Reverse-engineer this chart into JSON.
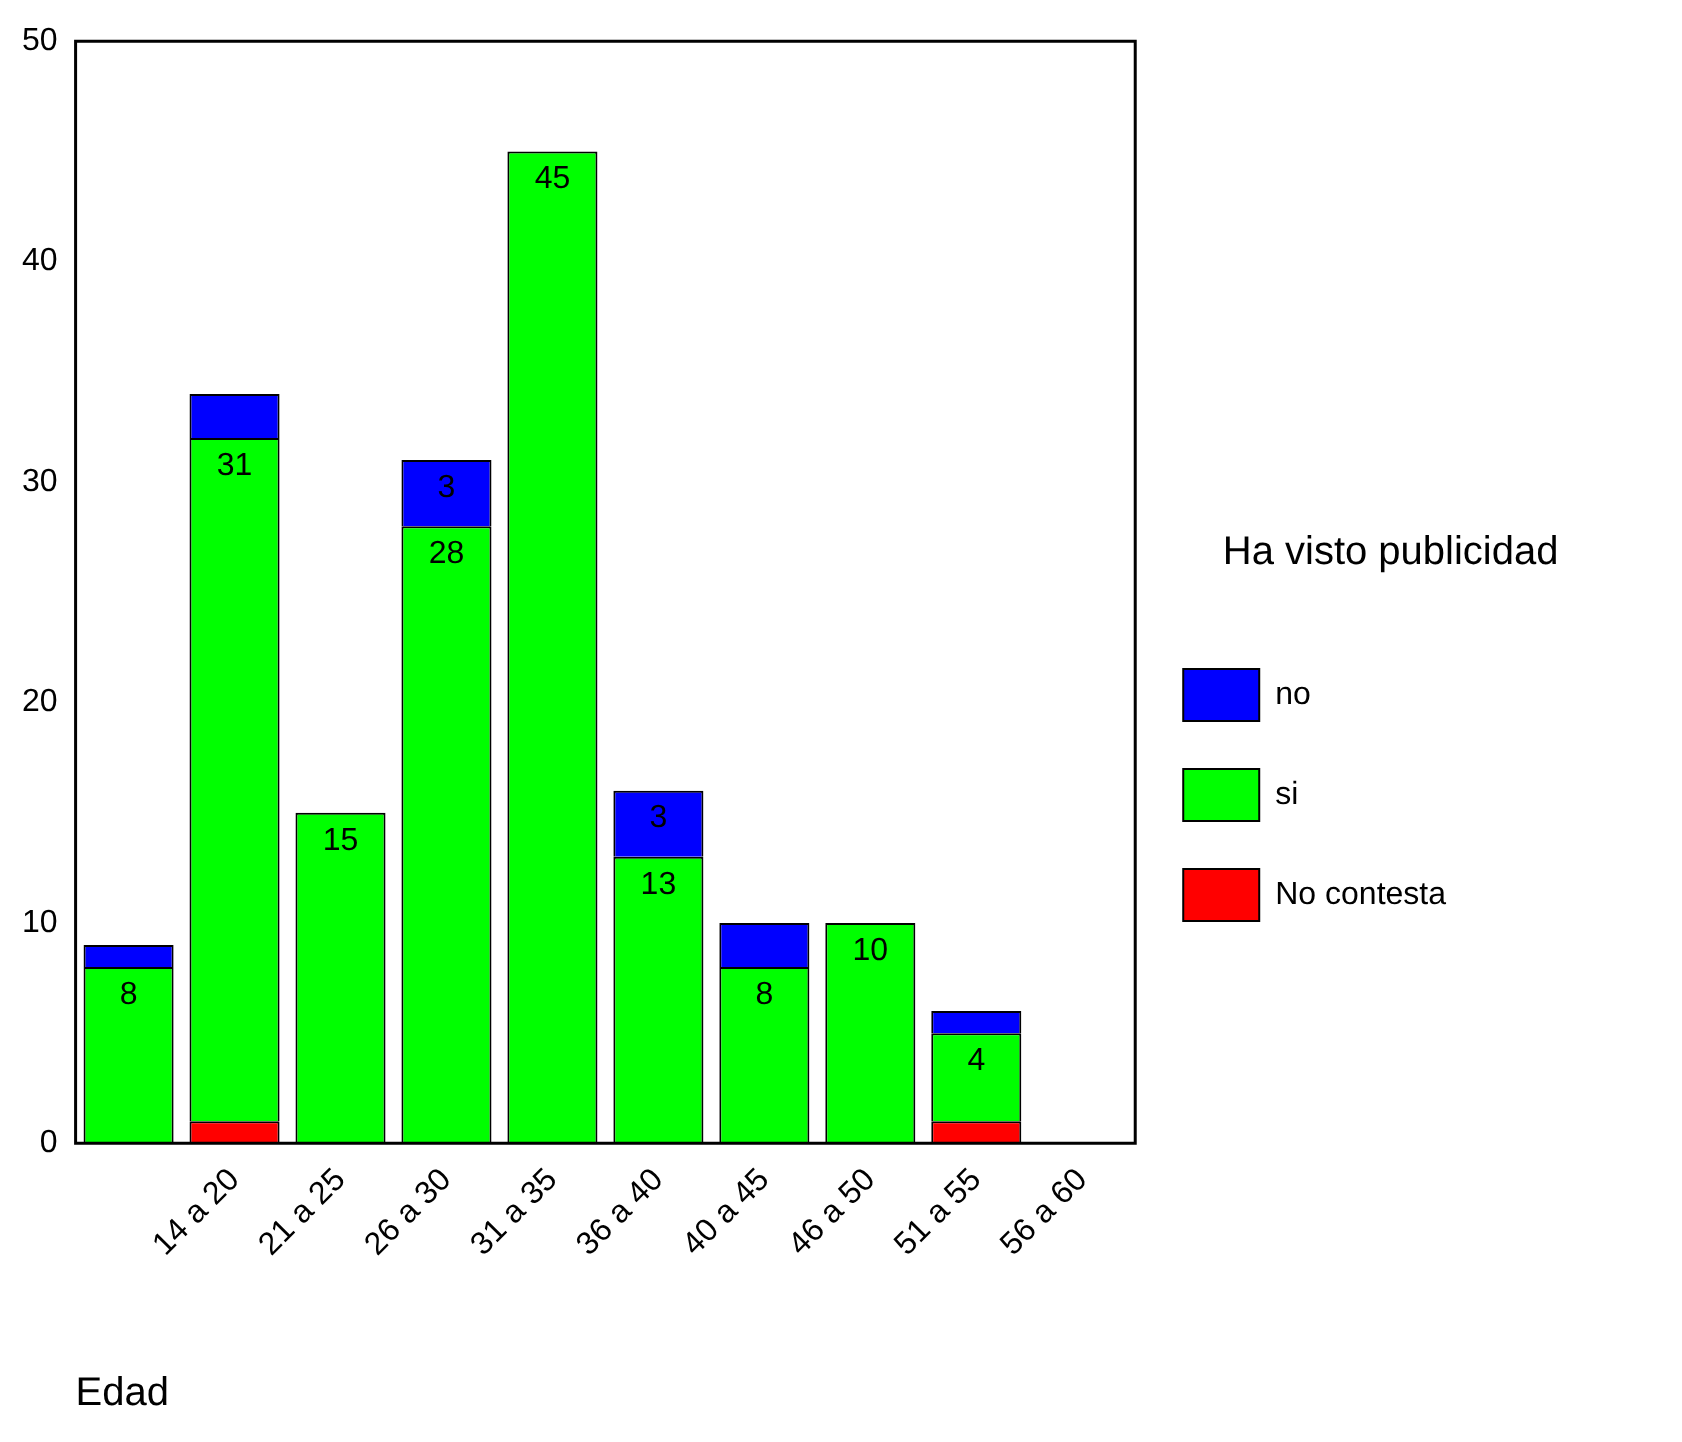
{
  "chart_data": {
    "type": "bar",
    "stacked": true,
    "xlabel": "Edad",
    "legend_title": "Ha visto publicidad",
    "legend": "right",
    "grid": false,
    "categories": [
      null,
      "14 a 20",
      "21 a 25",
      "26 a 30",
      "31 a 35",
      "36 a 40",
      "40 a 45",
      "46 a 50",
      "51 a 55",
      "56 a 60"
    ],
    "ylim": [
      0,
      50
    ],
    "yticks": [
      0,
      10,
      20,
      30,
      40,
      50
    ],
    "series": [
      {
        "name": "No contesta",
        "color": "#ff0000",
        "values": [
          0,
          1,
          0,
          0,
          0,
          0,
          0,
          0,
          1,
          null
        ],
        "value_labels": [
          null,
          null,
          null,
          null,
          null,
          null,
          null,
          null,
          null,
          null
        ]
      },
      {
        "name": "si",
        "color": "#00ff00",
        "values": [
          8,
          31,
          15,
          28,
          45,
          13,
          8,
          10,
          4,
          null
        ],
        "value_labels": [
          "8",
          "31",
          "15",
          "28",
          "45",
          "13",
          "8",
          "10",
          "4",
          null
        ]
      },
      {
        "name": "no",
        "color": "#0000ff",
        "values": [
          1,
          2,
          0,
          3,
          0,
          3,
          2,
          0,
          1,
          null
        ],
        "value_labels": [
          null,
          null,
          null,
          "3",
          null,
          "3",
          null,
          null,
          null,
          null
        ]
      }
    ]
  }
}
